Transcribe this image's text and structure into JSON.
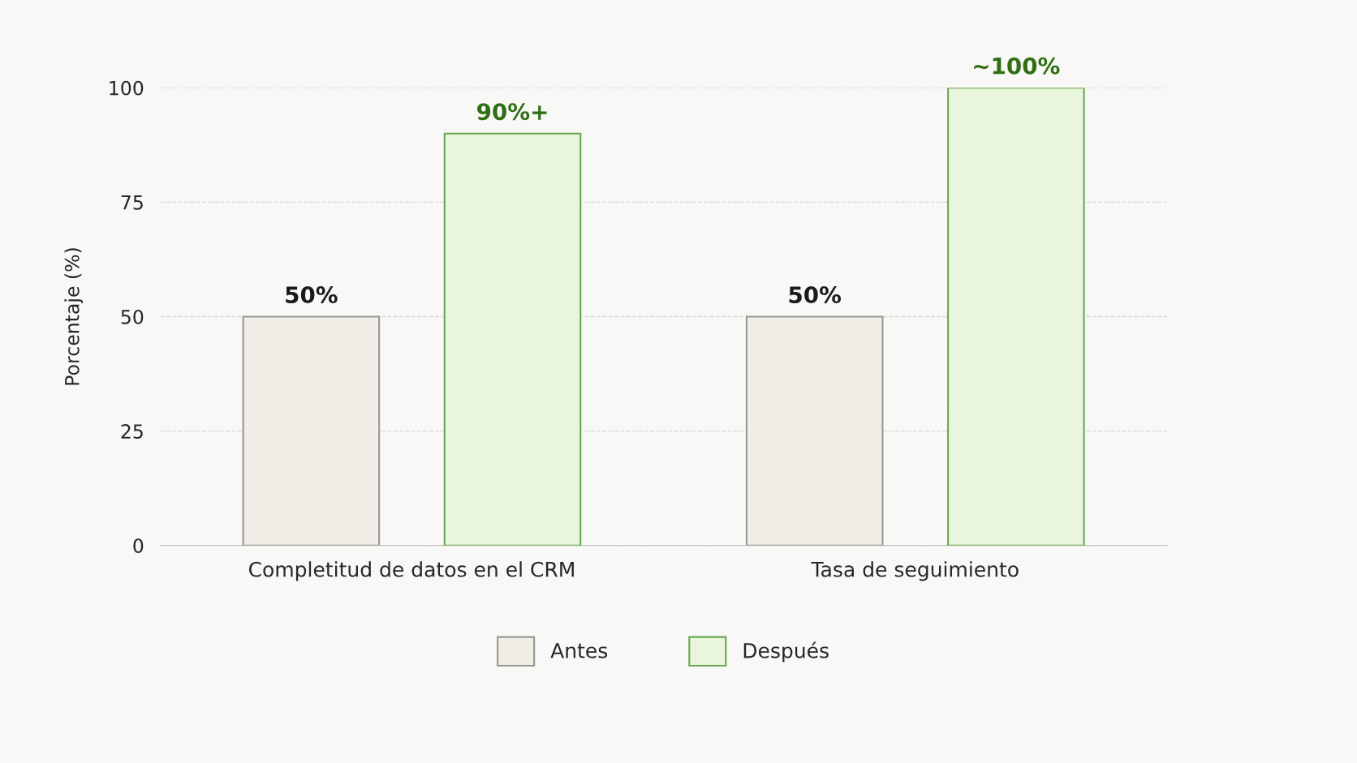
{
  "chart_data": {
    "type": "bar",
    "ylabel": "Porcentaje (%)",
    "categories": [
      "Completitud de datos en el CRM",
      "Tasa de seguimiento"
    ],
    "series": [
      {
        "name": "Antes",
        "color": "#f1ede7",
        "values": [
          50,
          50
        ],
        "value_labels": [
          "50%",
          "50%"
        ]
      },
      {
        "name": "Después",
        "color": "#e9f5dd",
        "values": [
          90,
          100
        ],
        "value_labels": [
          "90%+",
          "~100%"
        ]
      }
    ],
    "ylim": [
      0,
      100
    ],
    "yticks": [
      0,
      25,
      50,
      75,
      100
    ],
    "grid": "y",
    "legend": "bottom"
  }
}
